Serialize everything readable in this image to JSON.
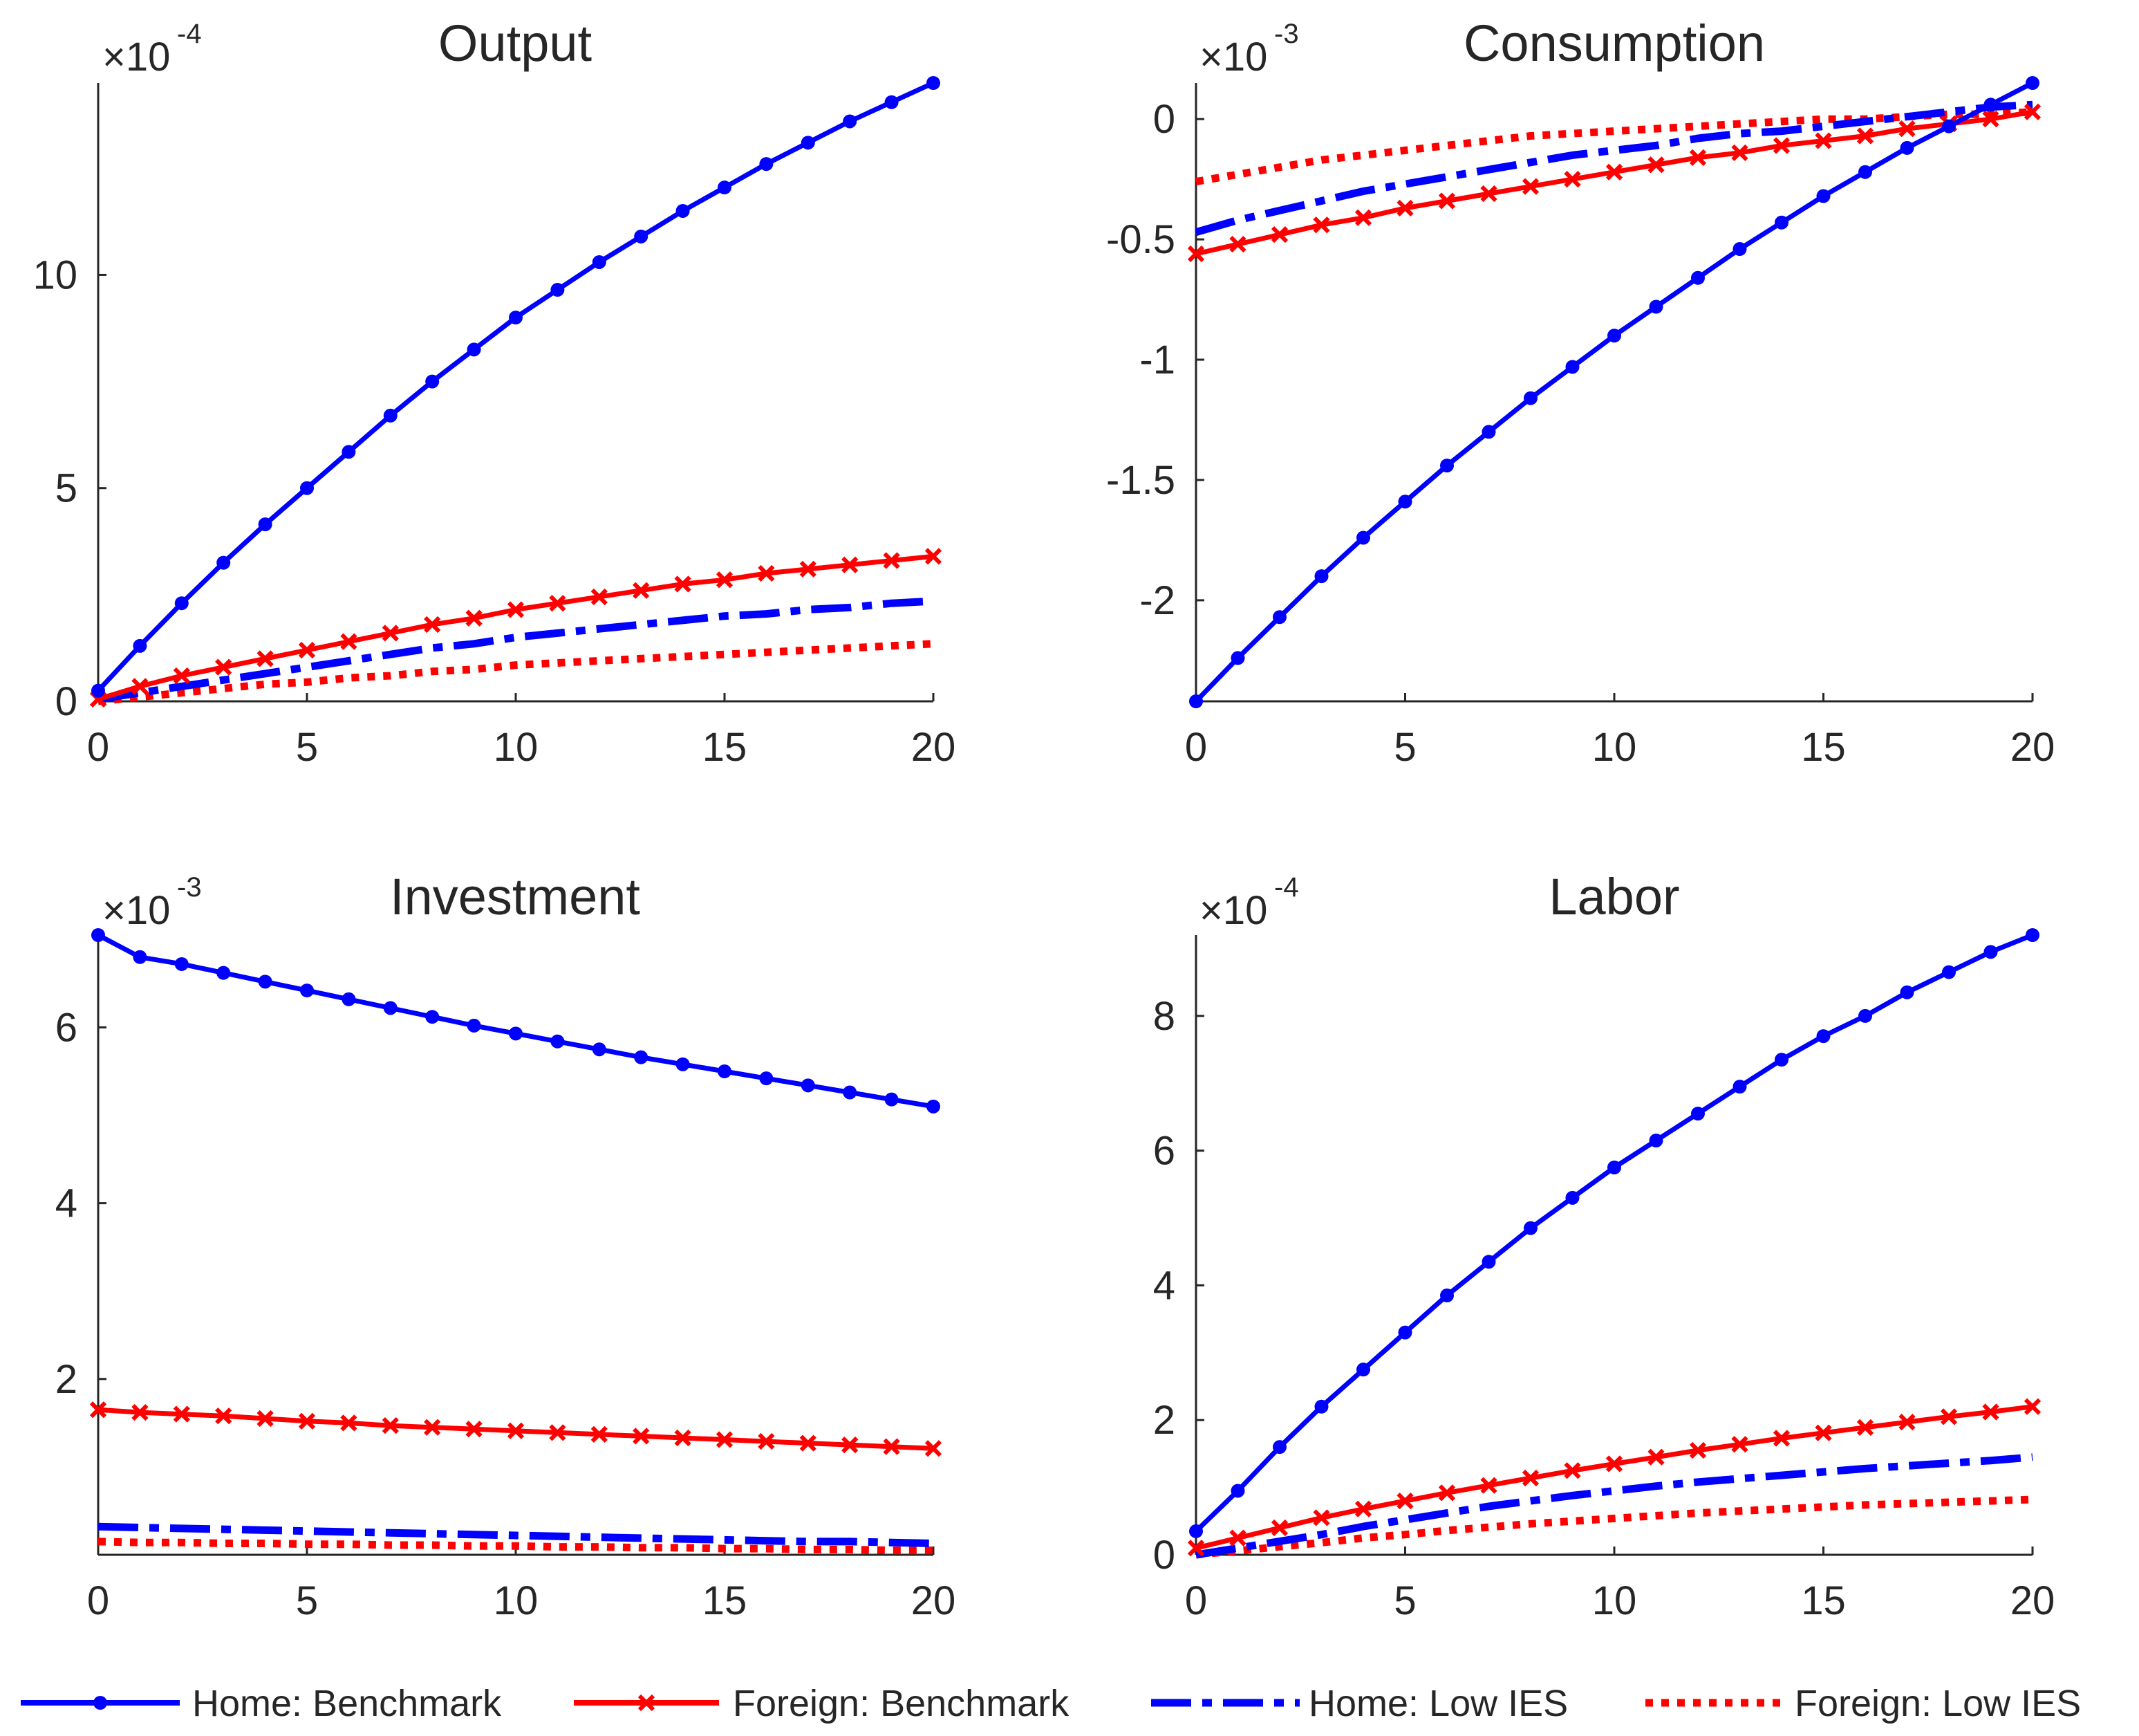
{
  "chart_data": [
    {
      "type": "line",
      "title": "Output",
      "exponent": "-4",
      "x": [
        0,
        1,
        2,
        3,
        4,
        5,
        6,
        7,
        8,
        9,
        10,
        11,
        12,
        13,
        14,
        15,
        16,
        17,
        18,
        19,
        20
      ],
      "xlim": [
        0,
        20
      ],
      "ylim": [
        0,
        14.5
      ],
      "xticks": [
        0,
        5,
        10,
        15,
        20
      ],
      "yticks": [
        0,
        5,
        10
      ],
      "ytick_labels": [
        "0",
        "5",
        "10"
      ],
      "series": [
        {
          "name": "Home: Benchmark",
          "values": [
            0.25,
            1.3,
            2.3,
            3.25,
            4.15,
            5.0,
            5.85,
            6.7,
            7.5,
            8.25,
            9.0,
            9.65,
            10.3,
            10.9,
            11.5,
            12.05,
            12.6,
            13.1,
            13.6,
            14.05,
            14.5
          ]
        },
        {
          "name": "Foreign: Benchmark",
          "values": [
            0.05,
            0.35,
            0.6,
            0.8,
            1.0,
            1.2,
            1.4,
            1.6,
            1.8,
            1.95,
            2.15,
            2.3,
            2.45,
            2.6,
            2.75,
            2.85,
            3.0,
            3.1,
            3.2,
            3.3,
            3.4
          ]
        },
        {
          "name": "Home: Low IES",
          "values": [
            0.05,
            0.2,
            0.35,
            0.5,
            0.65,
            0.8,
            0.95,
            1.1,
            1.25,
            1.35,
            1.5,
            1.6,
            1.7,
            1.8,
            1.9,
            2.0,
            2.05,
            2.15,
            2.2,
            2.3,
            2.35
          ]
        },
        {
          "name": "Foreign: Low IES",
          "values": [
            0.0,
            0.1,
            0.2,
            0.3,
            0.4,
            0.45,
            0.55,
            0.6,
            0.7,
            0.75,
            0.85,
            0.9,
            0.95,
            1.0,
            1.05,
            1.1,
            1.15,
            1.2,
            1.25,
            1.3,
            1.35
          ]
        }
      ]
    },
    {
      "type": "line",
      "title": "Consumption",
      "exponent": "-3",
      "x": [
        0,
        1,
        2,
        3,
        4,
        5,
        6,
        7,
        8,
        9,
        10,
        11,
        12,
        13,
        14,
        15,
        16,
        17,
        18,
        19,
        20
      ],
      "xlim": [
        0,
        20
      ],
      "ylim": [
        -2.42,
        0.15
      ],
      "xticks": [
        0,
        5,
        10,
        15,
        20
      ],
      "yticks": [
        -2,
        -1.5,
        -1,
        -0.5,
        0
      ],
      "ytick_labels": [
        "-2",
        "-1.5",
        "-1",
        "-0.5",
        "0"
      ],
      "series": [
        {
          "name": "Home: Benchmark",
          "values": [
            -2.42,
            -2.24,
            -2.07,
            -1.9,
            -1.74,
            -1.59,
            -1.44,
            -1.3,
            -1.16,
            -1.03,
            -0.9,
            -0.78,
            -0.66,
            -0.54,
            -0.43,
            -0.32,
            -0.22,
            -0.12,
            -0.03,
            0.06,
            0.15
          ]
        },
        {
          "name": "Foreign: Benchmark",
          "values": [
            -0.56,
            -0.52,
            -0.48,
            -0.44,
            -0.41,
            -0.37,
            -0.34,
            -0.31,
            -0.28,
            -0.25,
            -0.22,
            -0.19,
            -0.16,
            -0.14,
            -0.11,
            -0.09,
            -0.07,
            -0.04,
            -0.02,
            0.0,
            0.03
          ]
        },
        {
          "name": "Home: Low IES",
          "values": [
            -0.47,
            -0.42,
            -0.38,
            -0.34,
            -0.3,
            -0.27,
            -0.24,
            -0.21,
            -0.18,
            -0.15,
            -0.13,
            -0.11,
            -0.08,
            -0.06,
            -0.05,
            -0.03,
            -0.01,
            0.01,
            0.03,
            0.05,
            0.06
          ]
        },
        {
          "name": "Foreign: Low IES",
          "values": [
            -0.26,
            -0.23,
            -0.2,
            -0.17,
            -0.15,
            -0.13,
            -0.11,
            -0.09,
            -0.07,
            -0.06,
            -0.05,
            -0.04,
            -0.03,
            -0.02,
            -0.01,
            0.0,
            0.0,
            0.01,
            0.02,
            0.02,
            0.03
          ]
        }
      ]
    },
    {
      "type": "line",
      "title": "Investment",
      "exponent": "-3",
      "x": [
        0,
        1,
        2,
        3,
        4,
        5,
        6,
        7,
        8,
        9,
        10,
        11,
        12,
        13,
        14,
        15,
        16,
        17,
        18,
        19,
        20
      ],
      "xlim": [
        0,
        20
      ],
      "ylim": [
        0,
        7.05
      ],
      "xticks": [
        0,
        5,
        10,
        15,
        20
      ],
      "yticks": [
        2,
        4,
        6
      ],
      "ytick_labels": [
        "2",
        "4",
        "6"
      ],
      "series": [
        {
          "name": "Home: Benchmark",
          "values": [
            7.05,
            6.8,
            6.72,
            6.62,
            6.52,
            6.42,
            6.32,
            6.22,
            6.12,
            6.02,
            5.93,
            5.84,
            5.75,
            5.66,
            5.58,
            5.5,
            5.42,
            5.34,
            5.26,
            5.18,
            5.1
          ]
        },
        {
          "name": "Foreign: Benchmark",
          "values": [
            1.65,
            1.62,
            1.6,
            1.58,
            1.55,
            1.52,
            1.5,
            1.47,
            1.45,
            1.43,
            1.41,
            1.39,
            1.37,
            1.35,
            1.33,
            1.31,
            1.29,
            1.27,
            1.25,
            1.23,
            1.21
          ]
        },
        {
          "name": "Home: Low IES",
          "values": [
            0.32,
            0.31,
            0.3,
            0.29,
            0.28,
            0.27,
            0.26,
            0.25,
            0.24,
            0.23,
            0.22,
            0.21,
            0.2,
            0.19,
            0.18,
            0.17,
            0.16,
            0.15,
            0.15,
            0.14,
            0.13
          ]
        },
        {
          "name": "Foreign: Low IES",
          "values": [
            0.15,
            0.14,
            0.14,
            0.13,
            0.13,
            0.12,
            0.12,
            0.11,
            0.11,
            0.1,
            0.1,
            0.09,
            0.09,
            0.08,
            0.08,
            0.07,
            0.07,
            0.06,
            0.06,
            0.05,
            0.05
          ]
        }
      ]
    },
    {
      "type": "line",
      "title": "Labor",
      "exponent": "-4",
      "x": [
        0,
        1,
        2,
        3,
        4,
        5,
        6,
        7,
        8,
        9,
        10,
        11,
        12,
        13,
        14,
        15,
        16,
        17,
        18,
        19,
        20
      ],
      "xlim": [
        0,
        20
      ],
      "ylim": [
        0,
        9.2
      ],
      "xticks": [
        0,
        5,
        10,
        15,
        20
      ],
      "yticks": [
        0,
        2,
        4,
        6,
        8
      ],
      "ytick_labels": [
        "0",
        "2",
        "4",
        "6",
        "8"
      ],
      "series": [
        {
          "name": "Home: Benchmark",
          "values": [
            0.35,
            0.95,
            1.6,
            2.2,
            2.75,
            3.3,
            3.85,
            4.35,
            4.85,
            5.3,
            5.75,
            6.15,
            6.55,
            6.95,
            7.35,
            7.7,
            8.0,
            8.35,
            8.65,
            8.95,
            9.2
          ]
        },
        {
          "name": "Foreign: Benchmark",
          "values": [
            0.1,
            0.25,
            0.4,
            0.55,
            0.68,
            0.8,
            0.92,
            1.03,
            1.14,
            1.25,
            1.35,
            1.45,
            1.55,
            1.64,
            1.73,
            1.81,
            1.89,
            1.97,
            2.05,
            2.12,
            2.2
          ]
        },
        {
          "name": "Home: Low IES",
          "values": [
            0.0,
            0.1,
            0.2,
            0.3,
            0.42,
            0.52,
            0.62,
            0.72,
            0.8,
            0.88,
            0.95,
            1.02,
            1.08,
            1.13,
            1.18,
            1.23,
            1.28,
            1.32,
            1.36,
            1.4,
            1.45
          ]
        },
        {
          "name": "Foreign: Low IES",
          "values": [
            0.0,
            0.06,
            0.12,
            0.18,
            0.25,
            0.3,
            0.36,
            0.41,
            0.46,
            0.5,
            0.54,
            0.58,
            0.62,
            0.65,
            0.68,
            0.71,
            0.74,
            0.76,
            0.78,
            0.8,
            0.82
          ]
        }
      ]
    }
  ],
  "legend": [
    {
      "label": "Home: Benchmark"
    },
    {
      "label": "Foreign: Benchmark"
    },
    {
      "label": "Home: Low IES"
    },
    {
      "label": "Foreign: Low IES"
    }
  ],
  "series_styles": [
    {
      "color": "#0000ff",
      "dash": "solid",
      "marker": "dot"
    },
    {
      "color": "#ff0000",
      "dash": "solid",
      "marker": "x"
    },
    {
      "color": "#0000ff",
      "dash": "dash-dot",
      "marker": "none"
    },
    {
      "color": "#ff0000",
      "dash": "dotted",
      "marker": "none"
    }
  ]
}
